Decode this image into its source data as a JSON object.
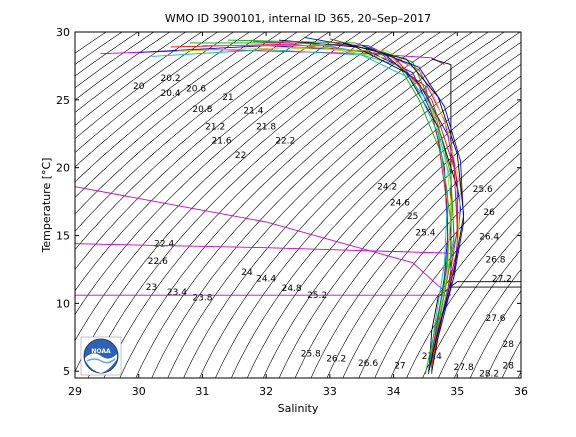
{
  "chart_data": {
    "type": "scatter",
    "title": "WMO ID 3900101, internal ID 365, 20–Sep–2017",
    "xlabel": "Salinity",
    "ylabel": "Temperature [°C]",
    "xlim": [
      29,
      36
    ],
    "ylim": [
      4.5,
      30
    ],
    "xticks": [
      29,
      30,
      31,
      32,
      33,
      34,
      35,
      36
    ],
    "yticks": [
      5,
      10,
      15,
      20,
      25,
      30
    ],
    "grid": false,
    "legend": "none",
    "logo_text": "NOAA",
    "isopycnal_labels": [
      {
        "text": "20",
        "s": 30.0,
        "t": 25.8
      },
      {
        "text": "20.2",
        "s": 30.5,
        "t": 26.4
      },
      {
        "text": "20.4",
        "s": 30.5,
        "t": 25.3
      },
      {
        "text": "20.6",
        "s": 30.9,
        "t": 25.6
      },
      {
        "text": "20.8",
        "s": 31.0,
        "t": 24.1
      },
      {
        "text": "21",
        "s": 31.4,
        "t": 25.0
      },
      {
        "text": "21.2",
        "s": 31.2,
        "t": 22.8
      },
      {
        "text": "21.4",
        "s": 31.8,
        "t": 24.0
      },
      {
        "text": "21.6",
        "s": 31.3,
        "t": 21.8
      },
      {
        "text": "21.8",
        "s": 32.0,
        "t": 22.8
      },
      {
        "text": "22",
        "s": 31.6,
        "t": 20.7
      },
      {
        "text": "22.2",
        "s": 32.3,
        "t": 21.8
      },
      {
        "text": "22.4",
        "s": 30.4,
        "t": 14.2
      },
      {
        "text": "22.6",
        "s": 30.3,
        "t": 12.9
      },
      {
        "text": "23",
        "s": 30.2,
        "t": 11.0
      },
      {
        "text": "23.4",
        "s": 30.6,
        "t": 10.6
      },
      {
        "text": "23.8",
        "s": 31.0,
        "t": 10.2
      },
      {
        "text": "24",
        "s": 31.7,
        "t": 12.1
      },
      {
        "text": "24.2",
        "s": 33.9,
        "t": 18.4
      },
      {
        "text": "24.4",
        "s": 32.0,
        "t": 11.6
      },
      {
        "text": "24.6",
        "s": 34.1,
        "t": 17.2
      },
      {
        "text": "24.8",
        "s": 32.4,
        "t": 10.9
      },
      {
        "text": "25",
        "s": 34.3,
        "t": 16.2
      },
      {
        "text": "25.2",
        "s": 32.8,
        "t": 10.4
      },
      {
        "text": "25.4",
        "s": 34.5,
        "t": 15.0
      },
      {
        "text": "25.6",
        "s": 35.4,
        "t": 18.2
      },
      {
        "text": "25.8",
        "s": 32.7,
        "t": 6.1
      },
      {
        "text": "26",
        "s": 35.5,
        "t": 16.5
      },
      {
        "text": "26.2",
        "s": 33.1,
        "t": 5.7
      },
      {
        "text": "26.4",
        "s": 35.5,
        "t": 14.7
      },
      {
        "text": "26.6",
        "s": 33.6,
        "t": 5.4
      },
      {
        "text": "26.8",
        "s": 35.6,
        "t": 13.0
      },
      {
        "text": "27",
        "s": 34.1,
        "t": 5.2
      },
      {
        "text": "27.2",
        "s": 35.7,
        "t": 11.6
      },
      {
        "text": "27.4",
        "s": 34.6,
        "t": 5.9
      },
      {
        "text": "27.6",
        "s": 35.6,
        "t": 8.7
      },
      {
        "text": "27.8",
        "s": 35.1,
        "t": 5.1
      },
      {
        "text": "28",
        "s": 35.8,
        "t": 6.8
      },
      {
        "text": "28.2",
        "s": 35.5,
        "t": 4.6
      },
      {
        "text": "28",
        "s": 35.8,
        "t": 5.2
      }
    ],
    "series": [
      {
        "color": "#cc00cc",
        "points": [
          [
            29.4,
            28.4
          ],
          [
            31.2,
            28.7
          ],
          [
            33.6,
            28.4
          ],
          [
            34.6,
            28.1
          ],
          [
            34.8,
            27.6
          ]
        ]
      },
      {
        "color": "#cc00cc",
        "points": [
          [
            29.0,
            18.6
          ],
          [
            32.0,
            16.0
          ],
          [
            34.3,
            13.0
          ],
          [
            34.7,
            11.3
          ],
          [
            34.9,
            10.6
          ]
        ]
      },
      {
        "color": "#cc00cc",
        "points": [
          [
            29.0,
            14.4
          ],
          [
            32.0,
            14.1
          ],
          [
            34.9,
            13.7
          ],
          [
            34.95,
            13.5
          ]
        ]
      },
      {
        "color": "#cc00cc",
        "points": [
          [
            29.0,
            10.6
          ],
          [
            32.0,
            10.6
          ],
          [
            34.9,
            10.6
          ]
        ]
      },
      {
        "color": "#000000",
        "points": [
          [
            34.6,
            28.0
          ],
          [
            34.9,
            27.6
          ],
          [
            34.9,
            26.0
          ],
          [
            34.9,
            14.0
          ],
          [
            34.9,
            11.2
          ],
          [
            36.0,
            11.2
          ]
        ]
      },
      {
        "color": "#000000",
        "points": [
          [
            34.55,
            4.8
          ],
          [
            34.6,
            8.0
          ],
          [
            34.7,
            10.5
          ],
          [
            35.0,
            11.6
          ],
          [
            36.0,
            11.6
          ]
        ]
      },
      {
        "color": "#0000ff",
        "points": [
          [
            30.0,
            28.5
          ],
          [
            32.0,
            29.0
          ],
          [
            33.6,
            28.6
          ],
          [
            34.3,
            27.0
          ],
          [
            34.6,
            24.0
          ],
          [
            34.8,
            20.0
          ],
          [
            34.85,
            15.0
          ],
          [
            34.8,
            12.0
          ],
          [
            34.7,
            9.0
          ],
          [
            34.6,
            6.0
          ],
          [
            34.6,
            4.8
          ]
        ]
      },
      {
        "color": "#ff0000",
        "points": [
          [
            30.5,
            28.9
          ],
          [
            32.4,
            29.1
          ],
          [
            33.8,
            28.4
          ],
          [
            34.5,
            26.0
          ],
          [
            34.7,
            22.0
          ],
          [
            34.85,
            17.0
          ],
          [
            34.85,
            13.0
          ],
          [
            34.7,
            9.0
          ],
          [
            34.55,
            5.0
          ]
        ]
      },
      {
        "color": "#00aa00",
        "points": [
          [
            30.8,
            29.2
          ],
          [
            32.6,
            29.2
          ],
          [
            34.0,
            28.2
          ],
          [
            34.4,
            25.0
          ],
          [
            34.75,
            21.0
          ],
          [
            34.9,
            16.0
          ],
          [
            34.8,
            11.5
          ],
          [
            34.6,
            7.0
          ],
          [
            34.5,
            4.8
          ]
        ]
      },
      {
        "color": "#00bbbb",
        "points": [
          [
            31.0,
            29.0
          ],
          [
            33.0,
            29.0
          ],
          [
            34.1,
            27.5
          ],
          [
            34.6,
            24.5
          ],
          [
            34.9,
            19.0
          ],
          [
            34.95,
            15.0
          ],
          [
            34.8,
            11.0
          ],
          [
            34.6,
            6.0
          ]
        ]
      },
      {
        "color": "#cccc00",
        "points": [
          [
            30.6,
            28.6
          ],
          [
            32.8,
            28.9
          ],
          [
            34.0,
            28.0
          ],
          [
            34.5,
            25.5
          ],
          [
            34.8,
            21.5
          ],
          [
            34.9,
            17.5
          ],
          [
            34.85,
            12.5
          ],
          [
            34.7,
            8.0
          ],
          [
            34.6,
            5.0
          ]
        ]
      },
      {
        "color": "#000000",
        "points": [
          [
            32.2,
            29.4
          ],
          [
            33.4,
            28.9
          ],
          [
            34.2,
            27.0
          ],
          [
            34.7,
            23.0
          ],
          [
            35.0,
            18.5
          ],
          [
            35.0,
            14.0
          ],
          [
            34.8,
            10.0
          ],
          [
            34.6,
            5.0
          ]
        ]
      },
      {
        "color": "#0000ff",
        "points": [
          [
            32.6,
            29.6
          ],
          [
            33.8,
            28.6
          ],
          [
            34.4,
            26.2
          ],
          [
            34.9,
            22.0
          ],
          [
            35.05,
            17.0
          ],
          [
            34.95,
            12.0
          ],
          [
            34.7,
            8.0
          ],
          [
            34.55,
            4.9
          ]
        ]
      },
      {
        "color": "#ff0000",
        "points": [
          [
            33.0,
            29.5
          ],
          [
            34.0,
            28.2
          ],
          [
            34.6,
            25.0
          ],
          [
            34.95,
            20.0
          ],
          [
            35.0,
            15.5
          ],
          [
            34.85,
            11.0
          ],
          [
            34.6,
            5.5
          ]
        ]
      },
      {
        "color": "#00aa00",
        "points": [
          [
            31.4,
            29.4
          ],
          [
            33.4,
            29.2
          ],
          [
            34.3,
            27.8
          ],
          [
            34.65,
            24.0
          ],
          [
            34.9,
            19.5
          ],
          [
            34.95,
            14.5
          ],
          [
            34.75,
            9.5
          ],
          [
            34.55,
            5.0
          ]
        ]
      },
      {
        "color": "#00bbbb",
        "points": [
          [
            30.2,
            28.2
          ],
          [
            32.0,
            28.7
          ],
          [
            33.5,
            28.3
          ],
          [
            34.3,
            26.5
          ],
          [
            34.7,
            22.5
          ],
          [
            34.85,
            18.0
          ],
          [
            34.8,
            13.0
          ],
          [
            34.65,
            8.5
          ],
          [
            34.55,
            4.9
          ]
        ]
      },
      {
        "color": "#cc00cc",
        "points": [
          [
            31.8,
            29.3
          ],
          [
            33.6,
            29.0
          ],
          [
            34.4,
            27.2
          ],
          [
            34.8,
            23.5
          ],
          [
            35.0,
            19.0
          ],
          [
            35.0,
            14.0
          ],
          [
            34.8,
            10.0
          ],
          [
            34.6,
            6.0
          ]
        ]
      },
      {
        "color": "#cccc00",
        "points": [
          [
            32.4,
            28.8
          ],
          [
            33.9,
            28.6
          ],
          [
            34.5,
            26.8
          ],
          [
            34.85,
            22.8
          ],
          [
            35.05,
            18.5
          ],
          [
            35.0,
            13.5
          ],
          [
            34.75,
            9.0
          ]
        ]
      },
      {
        "color": "#000000",
        "points": [
          [
            33.2,
            29.2
          ],
          [
            34.2,
            28.0
          ],
          [
            34.7,
            25.2
          ],
          [
            35.0,
            21.0
          ],
          [
            35.1,
            16.5
          ],
          [
            34.95,
            12.5
          ],
          [
            34.7,
            8.0
          ],
          [
            34.55,
            5.0
          ]
        ]
      },
      {
        "color": "#0000ff",
        "points": [
          [
            33.5,
            29.0
          ],
          [
            34.4,
            27.4
          ],
          [
            34.8,
            24.5
          ],
          [
            35.05,
            20.5
          ],
          [
            35.1,
            16.0
          ],
          [
            34.95,
            12.0
          ],
          [
            34.7,
            7.5
          ]
        ]
      }
    ]
  }
}
